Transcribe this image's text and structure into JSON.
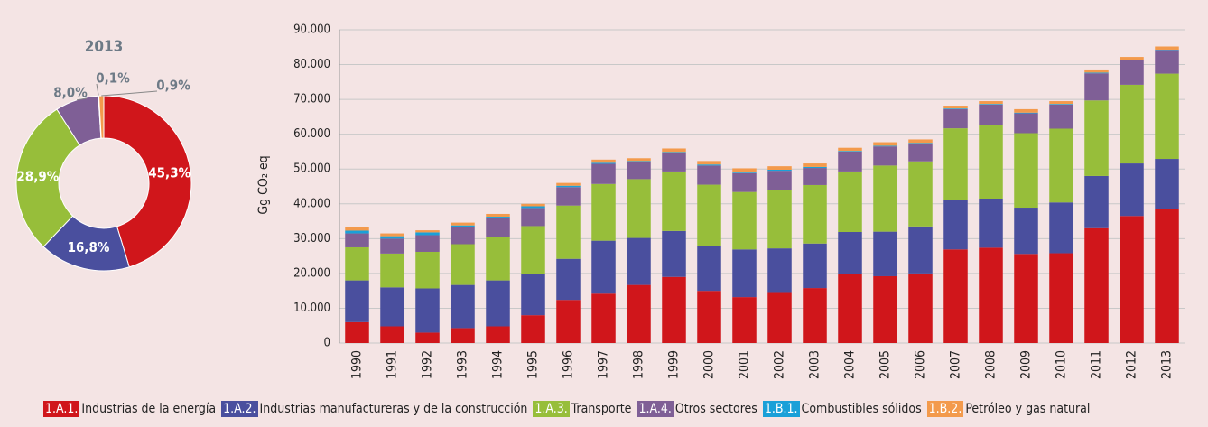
{
  "chart_data": [
    {
      "type": "donut",
      "title": "2013",
      "categories": [
        "1.A.1.",
        "1.A.2.",
        "1.A.3.",
        "1.A.4.",
        "1.B.1.",
        "1.B.2."
      ],
      "values": [
        45.3,
        16.8,
        28.9,
        8.0,
        0.1,
        0.9
      ],
      "value_labels": [
        "45,3%",
        "16,8%",
        "28,9%",
        "8,0%",
        "0,1%",
        "0,9%"
      ],
      "colors": [
        "#d0161b",
        "#4a4f9e",
        "#97be3a",
        "#7f5f96",
        "#1aa0d8",
        "#f39a4c"
      ]
    },
    {
      "type": "stacked_bar",
      "ylabel": "Gg CO₂ eq",
      "categories": [
        "1990",
        "1991",
        "1992",
        "1993",
        "1994",
        "1995",
        "1996",
        "1997",
        "1998",
        "1999",
        "2000",
        "2001",
        "2002",
        "2003",
        "2004",
        "2005",
        "2006",
        "2007",
        "2008",
        "2009",
        "2010",
        "2011",
        "2012",
        "2013"
      ],
      "ylim": [
        0,
        90000
      ],
      "yticks": [
        0,
        {
          "value": 10000,
          "label": "10.000"
        },
        {
          "value": 20000,
          "label": "20.000"
        },
        {
          "value": 30000,
          "label": "30.000"
        },
        {
          "value": 40000,
          "label": "40.000"
        },
        {
          "value": 50000,
          "label": "50.000"
        },
        {
          "value": 60000,
          "label": "60.000"
        },
        {
          "value": 70000,
          "label": "70.000"
        },
        {
          "value": 80000,
          "label": "80.000"
        },
        {
          "value": 90000,
          "label": "90.000"
        }
      ],
      "grid": true,
      "series": [
        {
          "code": "1.A.1.",
          "name": "Industrias de la energía",
          "color": "#d0161b",
          "values": [
            6000,
            4800,
            3000,
            4300,
            4800,
            8000,
            12400,
            14200,
            16700,
            19000,
            15000,
            13200,
            14400,
            15800,
            19800,
            19200,
            20000,
            26900,
            27400,
            25600,
            25800,
            33000,
            36500,
            38500
          ]
        },
        {
          "code": "1.A.2.",
          "name": "Industrias manufactureras y de la construcción",
          "color": "#4a4f9e",
          "values": [
            12000,
            11200,
            12700,
            12400,
            13200,
            11800,
            11800,
            15200,
            13500,
            13200,
            13000,
            13700,
            12800,
            12800,
            12100,
            12800,
            13500,
            14300,
            14100,
            13300,
            14600,
            15000,
            15100,
            14400
          ]
        },
        {
          "code": "1.A.3.",
          "name": "Transporte",
          "color": "#97be3a",
          "values": [
            9500,
            9700,
            10500,
            11700,
            12600,
            13800,
            15300,
            16300,
            16900,
            17100,
            17500,
            16500,
            16800,
            16800,
            17400,
            19000,
            18700,
            20500,
            21200,
            21400,
            21200,
            21700,
            22600,
            24500
          ]
        },
        {
          "code": "1.A.4.",
          "name": "Otros sectores",
          "color": "#7f5f96",
          "values": [
            4000,
            4300,
            4800,
            4800,
            5200,
            5200,
            5300,
            5800,
            4900,
            5300,
            5500,
            5400,
            5500,
            4900,
            5700,
            5500,
            5100,
            5500,
            5800,
            5700,
            6900,
            7800,
            7000,
            6800
          ]
        },
        {
          "code": "1.B.1.",
          "name": "Combustibles sólidos",
          "color": "#1aa0d8",
          "values": [
            800,
            700,
            800,
            600,
            500,
            500,
            400,
            300,
            300,
            300,
            300,
            200,
            300,
            300,
            200,
            200,
            200,
            200,
            200,
            200,
            200,
            200,
            200,
            100
          ]
        },
        {
          "code": "1.B.2.",
          "name": "Petróleo y gas natural",
          "color": "#f39a4c",
          "values": [
            900,
            800,
            600,
            800,
            800,
            700,
            800,
            900,
            800,
            1000,
            1000,
            1200,
            1000,
            1000,
            900,
            1000,
            1000,
            800,
            800,
            1000,
            800,
            900,
            800,
            900
          ]
        }
      ]
    }
  ]
}
